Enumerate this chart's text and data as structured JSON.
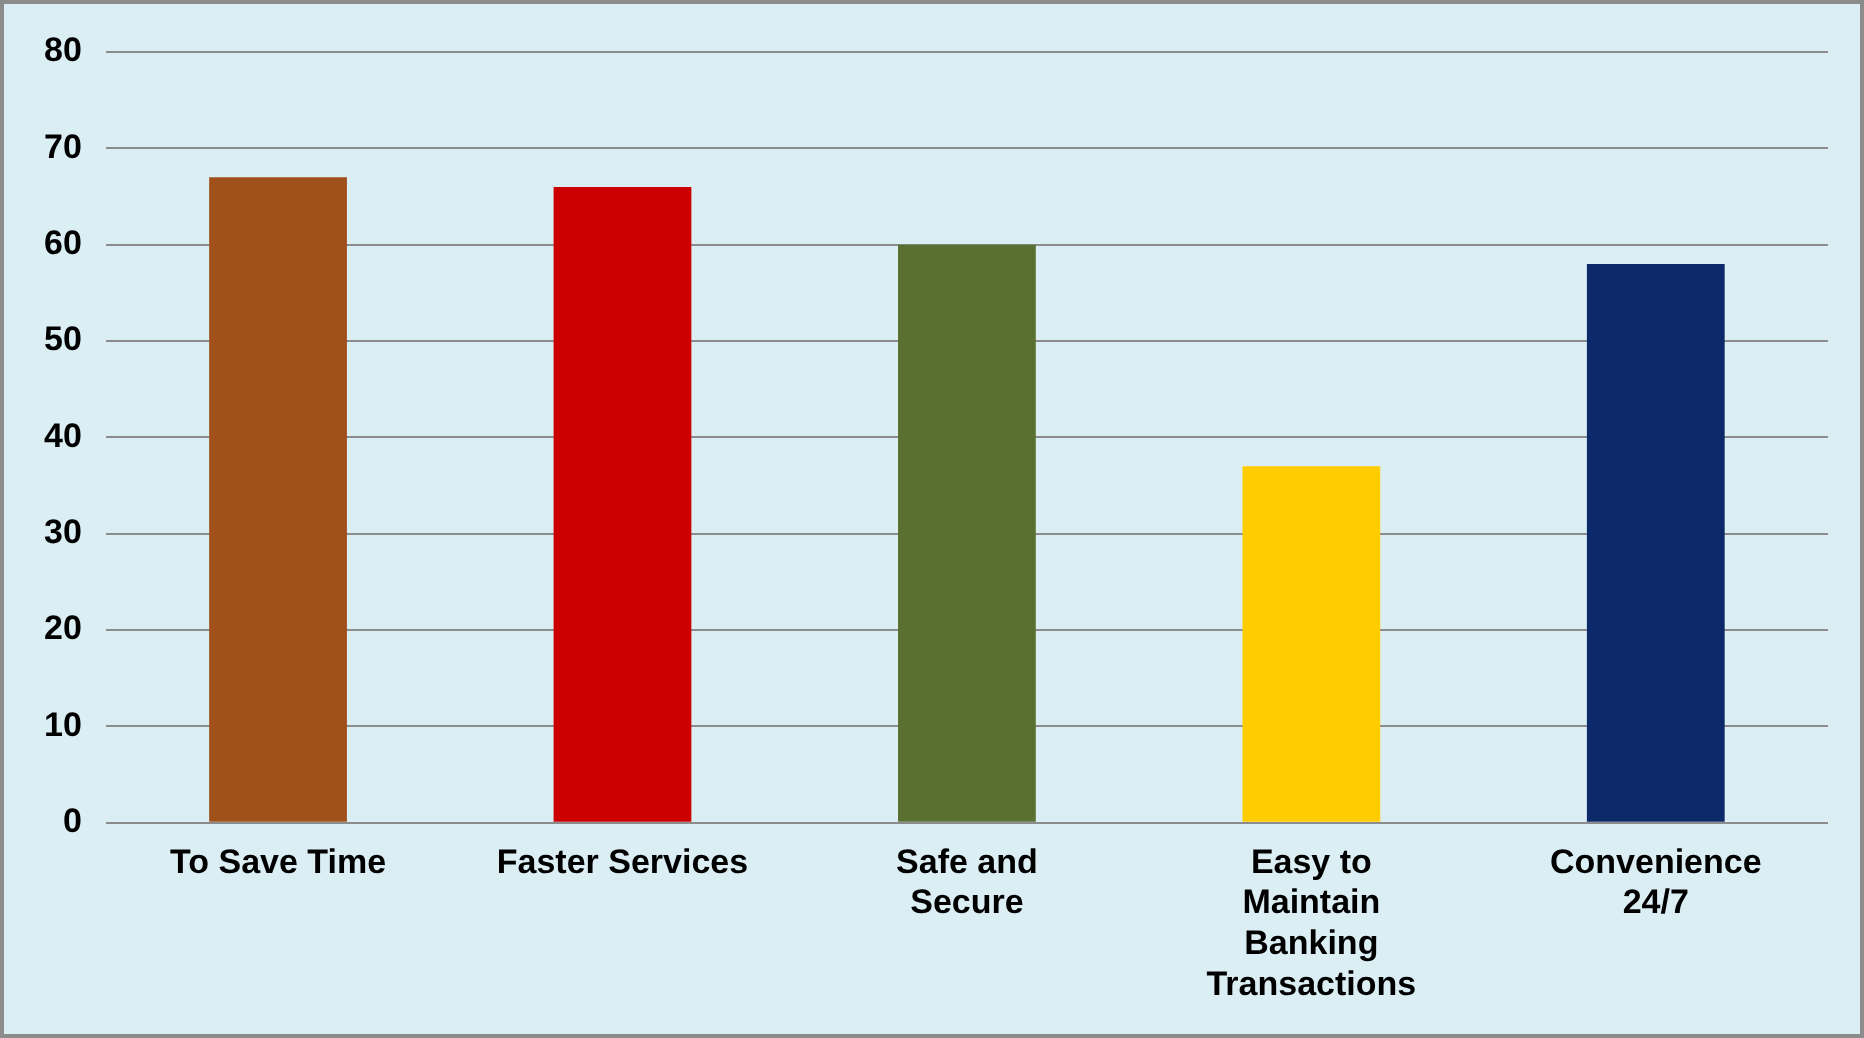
{
  "chart_data": {
    "type": "bar",
    "categories": [
      "To Save Time",
      "Faster Services",
      "Safe and Secure",
      "Easy to Maintain Banking Transactions",
      "Convenience 24/7"
    ],
    "values": [
      67,
      66,
      60,
      37,
      58
    ],
    "colors": [
      "#a0501a",
      "#cc0000",
      "#5a7030",
      "#ffcc00",
      "#0c2a6a"
    ],
    "ylim": [
      0,
      80
    ],
    "yticks": [
      0,
      10,
      20,
      30,
      40,
      50,
      60,
      70,
      80
    ],
    "grid": "y",
    "legend": false
  }
}
